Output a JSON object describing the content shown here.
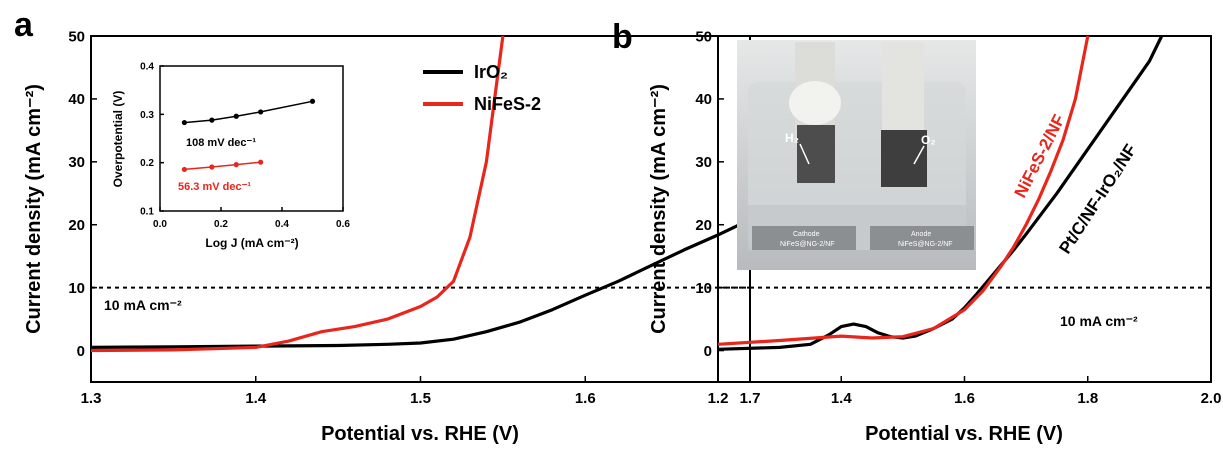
{
  "chart_data": [
    {
      "panel_label": "a",
      "type": "line",
      "xlabel": "Potential vs. RHE (V)",
      "ylabel": "Current density (mA cm⁻²)",
      "xlim": [
        1.3,
        1.7
      ],
      "ylim": [
        -5,
        50
      ],
      "xticks": [
        "1.3",
        "1.4",
        "1.5",
        "1.6",
        "1.7"
      ],
      "yticks": [
        "0",
        "10",
        "20",
        "30",
        "40",
        "50"
      ],
      "reference_line": {
        "y": 10,
        "label": "10 mA cm⁻²"
      },
      "legend": {
        "position": "top-right",
        "entries": [
          "IrO₂",
          "NiFeS-2"
        ]
      },
      "series": [
        {
          "name": "IrO₂",
          "color": "#000000",
          "x": [
            1.3,
            1.35,
            1.4,
            1.45,
            1.48,
            1.5,
            1.52,
            1.54,
            1.56,
            1.58,
            1.6,
            1.62,
            1.64,
            1.66,
            1.68,
            1.7
          ],
          "y": [
            0.5,
            0.6,
            0.7,
            0.8,
            1.0,
            1.2,
            1.8,
            3.0,
            4.5,
            6.5,
            8.8,
            11.0,
            13.5,
            16.0,
            18.3,
            20.8
          ]
        },
        {
          "name": "NiFeS-2",
          "color": "#e8261c",
          "x": [
            1.3,
            1.35,
            1.4,
            1.42,
            1.44,
            1.46,
            1.48,
            1.5,
            1.51,
            1.52,
            1.53,
            1.54,
            1.545,
            1.55
          ],
          "y": [
            0.0,
            0.1,
            0.5,
            1.5,
            3.0,
            3.8,
            5.0,
            7.0,
            8.5,
            11.0,
            18.0,
            30.0,
            40.0,
            50.0
          ]
        }
      ],
      "inset": {
        "xlabel": "Log J (mA cm⁻²)",
        "ylabel": "Overpotential (V)",
        "xlim": [
          0.0,
          0.6
        ],
        "ylim": [
          0.1,
          0.4
        ],
        "xticks": [
          "0.0",
          "0.2",
          "0.4",
          "0.6"
        ],
        "yticks": [
          "0.1",
          "0.2",
          "0.3",
          "0.4"
        ],
        "series": [
          {
            "name": "IrO₂",
            "color": "#000000",
            "label": "108 mV dec⁻¹",
            "x": [
              0.08,
              0.17,
              0.25,
              0.33,
              0.5
            ],
            "y": [
              0.283,
              0.288,
              0.296,
              0.305,
              0.327
            ]
          },
          {
            "name": "NiFeS-2",
            "color": "#e8261c",
            "label": "56.3 mV dec⁻¹",
            "x": [
              0.08,
              0.17,
              0.25,
              0.33
            ],
            "y": [
              0.186,
              0.191,
              0.196,
              0.201
            ]
          }
        ]
      }
    },
    {
      "panel_label": "b",
      "type": "line",
      "xlabel": "Potential vs. RHE (V)",
      "ylabel": "Current density (mA cm⁻²)",
      "xlim": [
        1.2,
        2.0
      ],
      "ylim": [
        -5,
        50
      ],
      "xticks": [
        "1.2",
        "1.4",
        "1.6",
        "1.8",
        "2.0"
      ],
      "yticks": [
        "0",
        "10",
        "20",
        "30",
        "40",
        "50"
      ],
      "reference_line": {
        "y": 10,
        "label": "10 mA cm⁻²"
      },
      "series": [
        {
          "name": "Pt/C/NF-IrO₂/NF",
          "color": "#000000",
          "x": [
            1.2,
            1.3,
            1.35,
            1.38,
            1.4,
            1.42,
            1.44,
            1.46,
            1.48,
            1.5,
            1.52,
            1.55,
            1.58,
            1.6,
            1.62,
            1.65,
            1.68,
            1.7,
            1.75,
            1.8,
            1.85,
            1.9,
            1.92
          ],
          "y": [
            0.2,
            0.5,
            1.0,
            2.5,
            3.8,
            4.2,
            3.8,
            2.8,
            2.2,
            2.0,
            2.3,
            3.5,
            5.0,
            6.8,
            9.0,
            12.5,
            16.0,
            18.5,
            25.0,
            32.0,
            39.0,
            46.0,
            50.0
          ]
        },
        {
          "name": "NiFeS-2/NF",
          "color": "#e8261c",
          "x": [
            1.2,
            1.3,
            1.4,
            1.45,
            1.5,
            1.55,
            1.6,
            1.63,
            1.66,
            1.68,
            1.7,
            1.72,
            1.74,
            1.76,
            1.78,
            1.8
          ],
          "y": [
            1.0,
            1.6,
            2.3,
            2.0,
            2.2,
            3.5,
            6.5,
            9.5,
            13.5,
            16.5,
            20.0,
            24.0,
            28.5,
            33.5,
            40.0,
            50.0
          ]
        }
      ],
      "series_labels": [
        "NiFeS-2/NF",
        "Pt/C/NF-IrO₂/NF"
      ],
      "photo": {
        "labels": [
          "H₂",
          "O₂",
          "Cathode",
          "Anode",
          "NiFeS@NG-2/NF",
          "NiFeS@NG-2/NF"
        ]
      }
    }
  ]
}
